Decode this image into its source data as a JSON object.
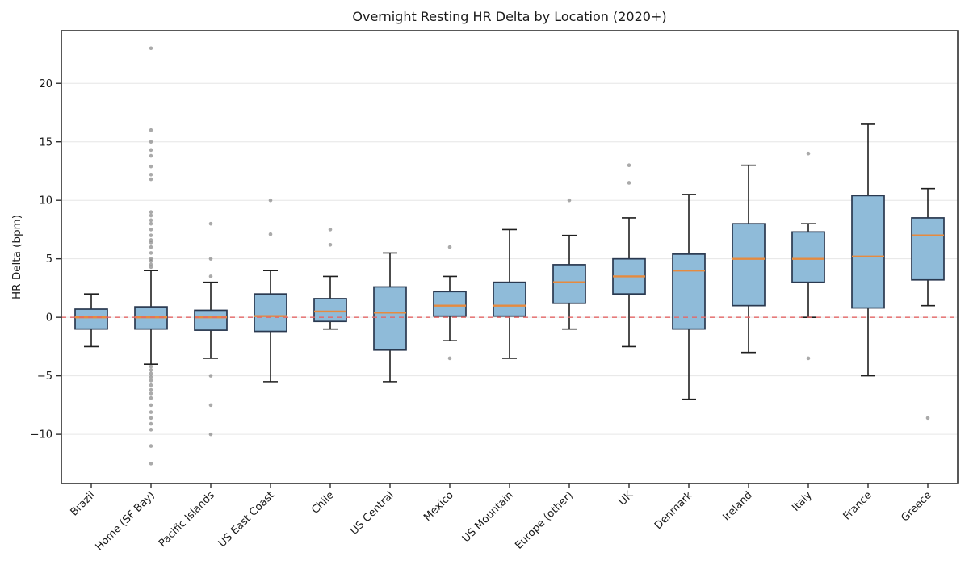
{
  "chart_data": {
    "type": "boxplot",
    "title": "Overnight Resting HR Delta by Location (2020+)",
    "xlabel": "",
    "ylabel": "HR Delta (bpm)",
    "ylim": [
      -14.2,
      24.5
    ],
    "yticks": [
      -10,
      -5,
      0,
      5,
      10,
      15,
      20
    ],
    "grid": "horizontal",
    "legend": "none",
    "zero_reference_line": 0,
    "categories": [
      "Brazil",
      "Home (SF Bay)",
      "Pacific Islands",
      "US East Coast",
      "Chile",
      "US Central",
      "Mexico",
      "US Mountain",
      "Europe (other)",
      "UK",
      "Denmark",
      "Ireland",
      "Italy",
      "France",
      "Greece"
    ],
    "series": [
      {
        "name": "Brazil",
        "whisker_low": -2.5,
        "q1": -1.0,
        "median": 0.0,
        "q3": 0.7,
        "whisker_high": 2.0,
        "outliers": []
      },
      {
        "name": "Home (SF Bay)",
        "whisker_low": -4.0,
        "q1": -1.0,
        "median": 0.0,
        "q3": 0.9,
        "whisker_high": 4.0,
        "outliers": [
          23.0,
          16.0,
          15.0,
          14.3,
          13.8,
          12.9,
          12.2,
          11.8,
          9.0,
          8.7,
          8.3,
          8.0,
          7.5,
          7.0,
          6.6,
          6.4,
          6.0,
          5.5,
          5.0,
          4.8,
          4.5,
          4.3,
          -4.2,
          -4.5,
          -4.8,
          -5.1,
          -5.4,
          -5.8,
          -6.2,
          -6.5,
          -6.9,
          -7.5,
          -8.1,
          -8.6,
          -9.1,
          -9.6,
          -11.0,
          -12.5
        ]
      },
      {
        "name": "Pacific Islands",
        "whisker_low": -3.5,
        "q1": -1.1,
        "median": 0.0,
        "q3": 0.6,
        "whisker_high": 3.0,
        "outliers": [
          8.0,
          5.0,
          3.5,
          -5.0,
          -7.5,
          -10.0
        ]
      },
      {
        "name": "US East Coast",
        "whisker_low": -5.5,
        "q1": -1.2,
        "median": 0.1,
        "q3": 2.0,
        "whisker_high": 4.0,
        "outliers": [
          10.0,
          7.1
        ]
      },
      {
        "name": "Chile",
        "whisker_low": -1.0,
        "q1": -0.35,
        "median": 0.5,
        "q3": 1.6,
        "whisker_high": 3.5,
        "outliers": [
          7.5,
          6.2
        ]
      },
      {
        "name": "US Central",
        "whisker_low": -5.5,
        "q1": -2.8,
        "median": 0.4,
        "q3": 2.6,
        "whisker_high": 5.5,
        "outliers": []
      },
      {
        "name": "Mexico",
        "whisker_low": -2.0,
        "q1": 0.1,
        "median": 1.0,
        "q3": 2.2,
        "whisker_high": 3.5,
        "outliers": [
          6.0,
          -3.5
        ]
      },
      {
        "name": "US Mountain",
        "whisker_low": -3.5,
        "q1": 0.1,
        "median": 1.0,
        "q3": 3.0,
        "whisker_high": 7.5,
        "outliers": []
      },
      {
        "name": "Europe (other)",
        "whisker_low": -1.0,
        "q1": 1.2,
        "median": 3.0,
        "q3": 4.5,
        "whisker_high": 7.0,
        "outliers": [
          10.0
        ]
      },
      {
        "name": "UK",
        "whisker_low": -2.5,
        "q1": 2.0,
        "median": 3.5,
        "q3": 5.0,
        "whisker_high": 8.5,
        "outliers": [
          13.0,
          11.5
        ]
      },
      {
        "name": "Denmark",
        "whisker_low": -7.0,
        "q1": -1.0,
        "median": 4.0,
        "q3": 5.4,
        "whisker_high": 10.5,
        "outliers": []
      },
      {
        "name": "Ireland",
        "whisker_low": -3.0,
        "q1": 1.0,
        "median": 5.0,
        "q3": 8.0,
        "whisker_high": 13.0,
        "outliers": []
      },
      {
        "name": "Italy",
        "whisker_low": 0.0,
        "q1": 3.0,
        "median": 5.0,
        "q3": 7.3,
        "whisker_high": 8.0,
        "outliers": [
          14.0,
          -3.5
        ]
      },
      {
        "name": "France",
        "whisker_low": -5.0,
        "q1": 0.8,
        "median": 5.2,
        "q3": 10.4,
        "whisker_high": 16.5,
        "outliers": []
      },
      {
        "name": "Greece",
        "whisker_low": 1.0,
        "q1": 3.2,
        "median": 7.0,
        "q3": 8.5,
        "whisker_high": 11.0,
        "outliers": [
          -8.6
        ]
      }
    ]
  },
  "colors": {
    "box_fill": "#8fbbd9",
    "box_edge": "#2a3950",
    "median": "#e68a3e",
    "whisker": "#1f1f1f",
    "zero_line": "#e46666",
    "grid": "#e6e6e6",
    "spine": "#2f2f2f",
    "outlier": "#7d7d7d",
    "text": "#1a1a1a",
    "background": "#ffffff"
  }
}
